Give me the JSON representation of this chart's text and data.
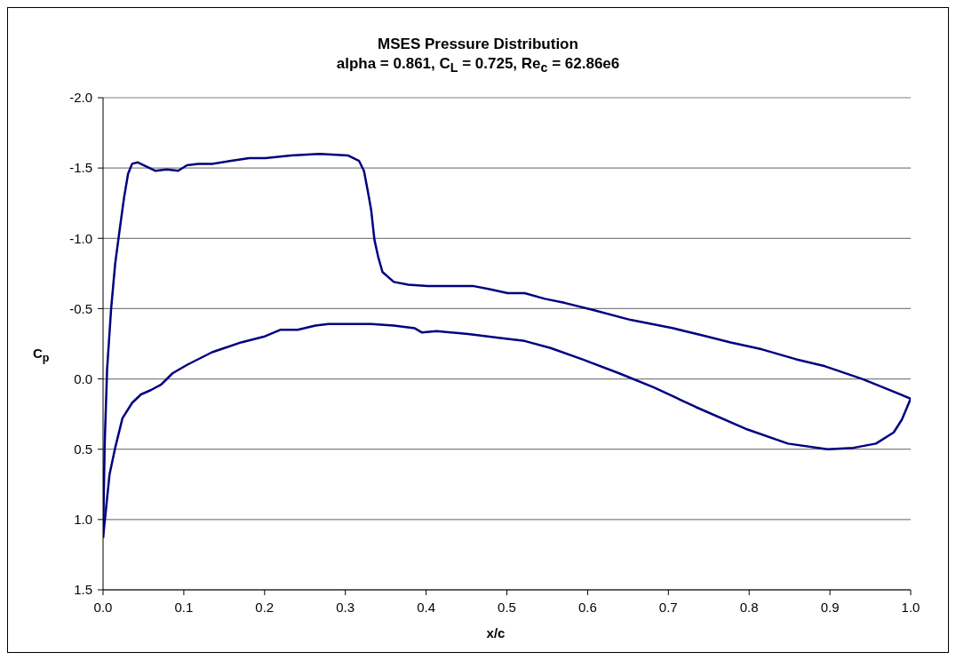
{
  "chart_data": {
    "type": "line",
    "title": "MSES Pressure Distribution",
    "subtitle": "alpha = 0.861, C$_{L}$ = 0.725, Re$_{c}$ = 62.86e6",
    "xlabel": "x/c",
    "ylabel": "C$_{p}$",
    "series": [
      {
        "color": "#000080",
        "x": [
          0.0,
          0.002,
          0.005,
          0.01,
          0.015,
          0.021,
          0.026,
          0.031,
          0.036,
          0.043,
          0.054,
          0.065,
          0.079,
          0.093,
          0.104,
          0.118,
          0.135,
          0.157,
          0.181,
          0.201,
          0.233,
          0.268,
          0.303,
          0.317,
          0.323,
          0.328,
          0.332,
          0.336,
          0.341,
          0.346,
          0.36,
          0.378,
          0.402,
          0.431,
          0.459,
          0.477,
          0.501,
          0.522,
          0.547,
          0.572,
          0.607,
          0.653,
          0.706,
          0.742,
          0.777,
          0.816,
          0.858,
          0.894,
          0.94,
          0.97,
          1.0
        ],
        "values": [
          1.13,
          0.47,
          -0.07,
          -0.5,
          -0.82,
          -1.08,
          -1.29,
          -1.46,
          -1.53,
          -1.54,
          -1.51,
          -1.48,
          -1.49,
          -1.48,
          -1.52,
          -1.53,
          -1.53,
          -1.55,
          -1.57,
          -1.57,
          -1.59,
          -1.6,
          -1.59,
          -1.55,
          -1.48,
          -1.33,
          -1.2,
          -0.99,
          -0.86,
          -0.76,
          -0.69,
          -0.67,
          -0.66,
          -0.66,
          -0.66,
          -0.64,
          -0.61,
          -0.61,
          -0.57,
          -0.54,
          -0.49,
          -0.42,
          -0.36,
          -0.31,
          -0.26,
          -0.21,
          -0.14,
          -0.09,
          0.0,
          0.07,
          0.14
        ]
      },
      {
        "color": "#000080",
        "x": [
          0.0,
          0.003,
          0.008,
          0.015,
          0.024,
          0.036,
          0.047,
          0.059,
          0.072,
          0.086,
          0.104,
          0.135,
          0.171,
          0.199,
          0.22,
          0.241,
          0.263,
          0.279,
          0.332,
          0.36,
          0.386,
          0.395,
          0.413,
          0.452,
          0.494,
          0.522,
          0.554,
          0.593,
          0.639,
          0.682,
          0.734,
          0.798,
          0.848,
          0.897,
          0.929,
          0.957,
          0.979,
          0.989,
          1.0
        ],
        "values": [
          1.13,
          0.96,
          0.68,
          0.49,
          0.28,
          0.17,
          0.11,
          0.08,
          0.04,
          -0.04,
          -0.1,
          -0.19,
          -0.26,
          -0.3,
          -0.35,
          -0.35,
          -0.38,
          -0.39,
          -0.39,
          -0.38,
          -0.36,
          -0.33,
          -0.34,
          -0.32,
          -0.29,
          -0.27,
          -0.22,
          -0.14,
          -0.04,
          0.06,
          0.2,
          0.36,
          0.46,
          0.5,
          0.49,
          0.46,
          0.38,
          0.29,
          0.14
        ]
      }
    ],
    "xlim": [
      0.0,
      1.0
    ],
    "xticks": [
      {
        "value": 0.0,
        "label": "0.0"
      },
      {
        "value": 0.1,
        "label": "0.1"
      },
      {
        "value": 0.2,
        "label": "0.2"
      },
      {
        "value": 0.3,
        "label": "0.3"
      },
      {
        "value": 0.4,
        "label": "0.4"
      },
      {
        "value": 0.5,
        "label": "0.5"
      },
      {
        "value": 0.6,
        "label": "0.6"
      },
      {
        "value": 0.7,
        "label": "0.7"
      },
      {
        "value": 0.8,
        "label": "0.8"
      },
      {
        "value": 0.9,
        "label": "0.9"
      },
      {
        "value": 1.0,
        "label": "1.0"
      }
    ],
    "ylim": [
      1.5,
      -2.0
    ],
    "yticks": [
      {
        "value": -2.0,
        "label": "-2.0"
      },
      {
        "value": -1.5,
        "label": "-1.5"
      },
      {
        "value": -1.0,
        "label": "-1.0"
      },
      {
        "value": -0.5,
        "label": "-0.5"
      },
      {
        "value": 0.0,
        "label": "0.0"
      },
      {
        "value": 0.5,
        "label": "0.5"
      },
      {
        "value": 1.0,
        "label": "1.0"
      },
      {
        "value": 1.5,
        "label": "1.5"
      }
    ],
    "grid": "y"
  }
}
